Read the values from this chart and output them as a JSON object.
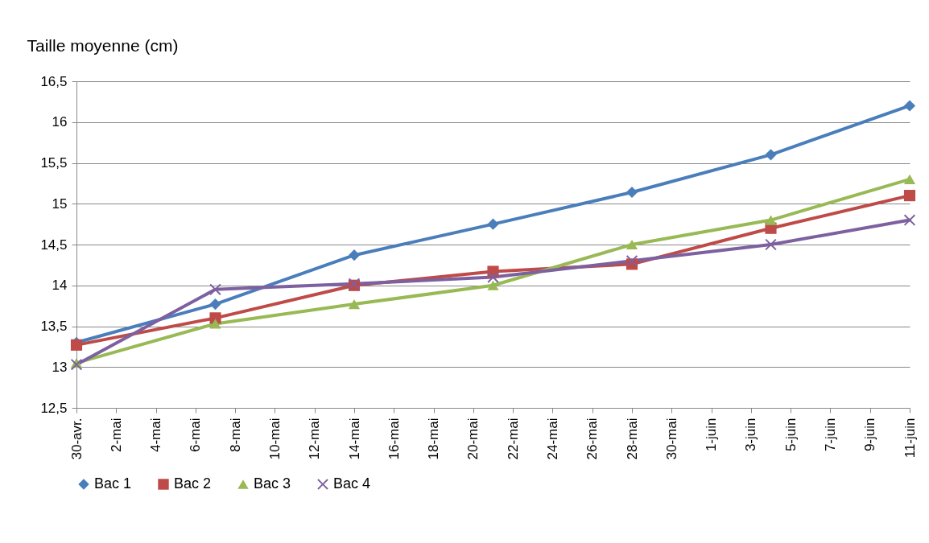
{
  "chart_data": {
    "type": "line",
    "ylabel": "Taille moyenne (cm)",
    "x": [
      "--04-30",
      "--05-07",
      "--05-14",
      "--05-21",
      "--05-28",
      "--06-04",
      "--06-11"
    ],
    "xlim": [
      "--04-30",
      "--06-11"
    ],
    "xticks": [
      {
        "value": "--04-30",
        "label": "30-avr."
      },
      {
        "value": "--05-02",
        "label": "2-mai"
      },
      {
        "value": "--05-04",
        "label": "4-mai"
      },
      {
        "value": "--05-06",
        "label": "6-mai"
      },
      {
        "value": "--05-08",
        "label": "8-mai"
      },
      {
        "value": "--05-10",
        "label": "10-mai"
      },
      {
        "value": "--05-12",
        "label": "12-mai"
      },
      {
        "value": "--05-14",
        "label": "14-mai"
      },
      {
        "value": "--05-16",
        "label": "16-mai"
      },
      {
        "value": "--05-18",
        "label": "18-mai"
      },
      {
        "value": "--05-20",
        "label": "20-mai"
      },
      {
        "value": "--05-22",
        "label": "22-mai"
      },
      {
        "value": "--05-24",
        "label": "24-mai"
      },
      {
        "value": "--05-26",
        "label": "26-mai"
      },
      {
        "value": "--05-28",
        "label": "28-mai"
      },
      {
        "value": "--05-30",
        "label": "30-mai"
      },
      {
        "value": "--06-01",
        "label": "1-juin"
      },
      {
        "value": "--06-03",
        "label": "3-juin"
      },
      {
        "value": "--06-05",
        "label": "5-juin"
      },
      {
        "value": "--06-07",
        "label": "7-juin"
      },
      {
        "value": "--06-09",
        "label": "9-juin"
      },
      {
        "value": "--06-11",
        "label": "11-juin"
      }
    ],
    "ylim": [
      12.5,
      16.5
    ],
    "yticks": [
      {
        "value": 12.5,
        "label": "12,5"
      },
      13,
      {
        "value": 13.5,
        "label": "13,5"
      },
      14,
      {
        "value": 14.5,
        "label": "14,5"
      },
      15,
      {
        "value": 15.5,
        "label": "15,5"
      },
      16,
      {
        "value": 16.5,
        "label": "16,5"
      }
    ],
    "grid": "y",
    "legend": "bottom",
    "series": [
      {
        "name": "Bac 1",
        "color": "#4a7ebb",
        "marker": "diamond",
        "values": [
          13.3,
          13.77,
          14.37,
          14.75,
          15.14,
          15.6,
          16.2
        ]
      },
      {
        "name": "Bac 2",
        "color": "#be4b48",
        "marker": "square",
        "values": [
          13.27,
          13.6,
          14.0,
          14.17,
          14.26,
          14.7,
          15.1
        ]
      },
      {
        "name": "Bac 3",
        "color": "#98b954",
        "marker": "triangle",
        "values": [
          13.05,
          13.53,
          13.77,
          14.0,
          14.5,
          14.8,
          15.3
        ]
      },
      {
        "name": "Bac 4",
        "color": "#7d60a0",
        "marker": "cross",
        "values": [
          13.03,
          13.95,
          14.02,
          14.1,
          14.3,
          14.5,
          14.8
        ]
      }
    ]
  }
}
